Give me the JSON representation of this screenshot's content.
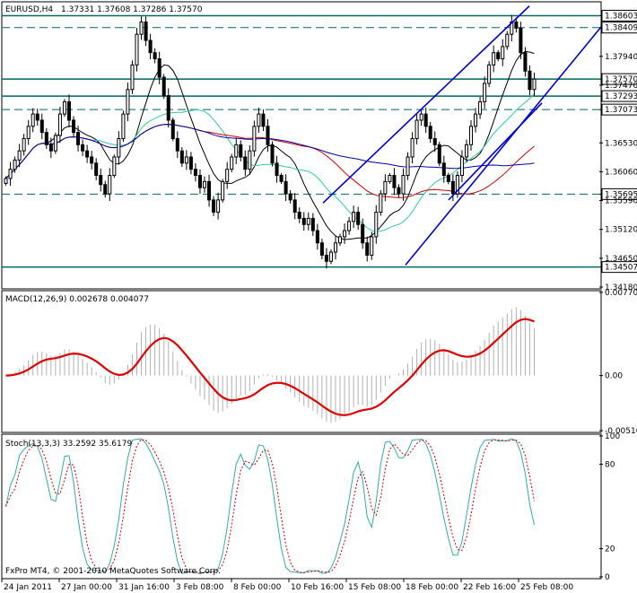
{
  "chart_data": [
    {
      "type": "candlestick",
      "title": "EURUSD,H4",
      "ohlc_label": "1.37331 1.37608 1.37286 1.37570",
      "ylim": [
        1.3418,
        1.388
      ],
      "y_ticks": [
        "1.38603",
        "1.38409",
        "1.37940",
        "1.37570",
        "1.37470",
        "1.37293",
        "1.37073",
        "1.36530",
        "1.36060",
        "1.35695",
        "1.35590",
        "1.35120",
        "1.34650",
        "1.34507",
        "1.34180"
      ],
      "highlighted_ticks": [
        "1.38603",
        "1.38409",
        "1.37570",
        "1.37293",
        "1.37073",
        "1.35695",
        "1.34507"
      ],
      "close_series": [
        1.3595,
        1.361,
        1.3625,
        1.364,
        1.366,
        1.368,
        1.37,
        1.369,
        1.367,
        1.365,
        1.364,
        1.3665,
        1.37,
        1.372,
        1.369,
        1.367,
        1.365,
        1.364,
        1.363,
        1.362,
        1.36,
        1.3585,
        1.357,
        1.36,
        1.363,
        1.366,
        1.37,
        1.374,
        1.378,
        1.383,
        1.385,
        1.382,
        1.38,
        1.379,
        1.376,
        1.373,
        1.369,
        1.366,
        1.364,
        1.362,
        1.363,
        1.361,
        1.36,
        1.358,
        1.359,
        1.356,
        1.354,
        1.356,
        1.359,
        1.361,
        1.363,
        1.365,
        1.363,
        1.361,
        1.364,
        1.368,
        1.37,
        1.368,
        1.365,
        1.362,
        1.36,
        1.359,
        1.357,
        1.356,
        1.354,
        1.353,
        1.352,
        1.353,
        1.351,
        1.349,
        1.347,
        1.346,
        1.3475,
        1.349,
        1.35,
        1.351,
        1.3525,
        1.354,
        1.352,
        1.349,
        1.347,
        1.35,
        1.354,
        1.357,
        1.359,
        1.36,
        1.358,
        1.357,
        1.36,
        1.363,
        1.366,
        1.369,
        1.37,
        1.368,
        1.366,
        1.365,
        1.362,
        1.36,
        1.359,
        1.357,
        1.36,
        1.363,
        1.365,
        1.368,
        1.37,
        1.372,
        1.375,
        1.378,
        1.38,
        1.379,
        1.381,
        1.383,
        1.385,
        1.384,
        1.38,
        1.377,
        1.374,
        1.3757
      ]
    },
    {
      "type": "macd",
      "title": "MACD(12,26,9) 0.002678 0.004077",
      "ylim": [
        -0.0051,
        0.0077
      ],
      "y_ticks": [
        "0.00770",
        "0.00",
        "-0.00510"
      ]
    },
    {
      "type": "stochastic",
      "title": "Stoch(13,3,3) 33.2592 35.6179",
      "ylim": [
        0,
        100
      ],
      "y_ticks": [
        "100",
        "80",
        "20",
        "0"
      ]
    }
  ],
  "x_ticks": [
    "24 Jan 2011",
    "27 Jan 00:00",
    "31 Jan 16:00",
    "3 Feb 08:00",
    "8 Feb 00:00",
    "10 Feb 16:00",
    "15 Feb 08:00",
    "18 Feb 00:00",
    "22 Feb 16:00",
    "25 Feb 08:00"
  ],
  "footer": "FxPro MT4, © 2001-2010 MetaQuotes Software Corp.",
  "colors": {
    "candle": "#000000",
    "ma_black": "#000000",
    "ma_green": "#33cc99",
    "ma_red": "#cc0000",
    "ma_blue": "#0000aa",
    "channel": "#0000cc",
    "level_line": "#006666",
    "macd_hist": "#b0b0b0",
    "macd_signal": "#dd0000",
    "stoch_main": "#33aaaa",
    "stoch_signal": "#cc0000"
  }
}
